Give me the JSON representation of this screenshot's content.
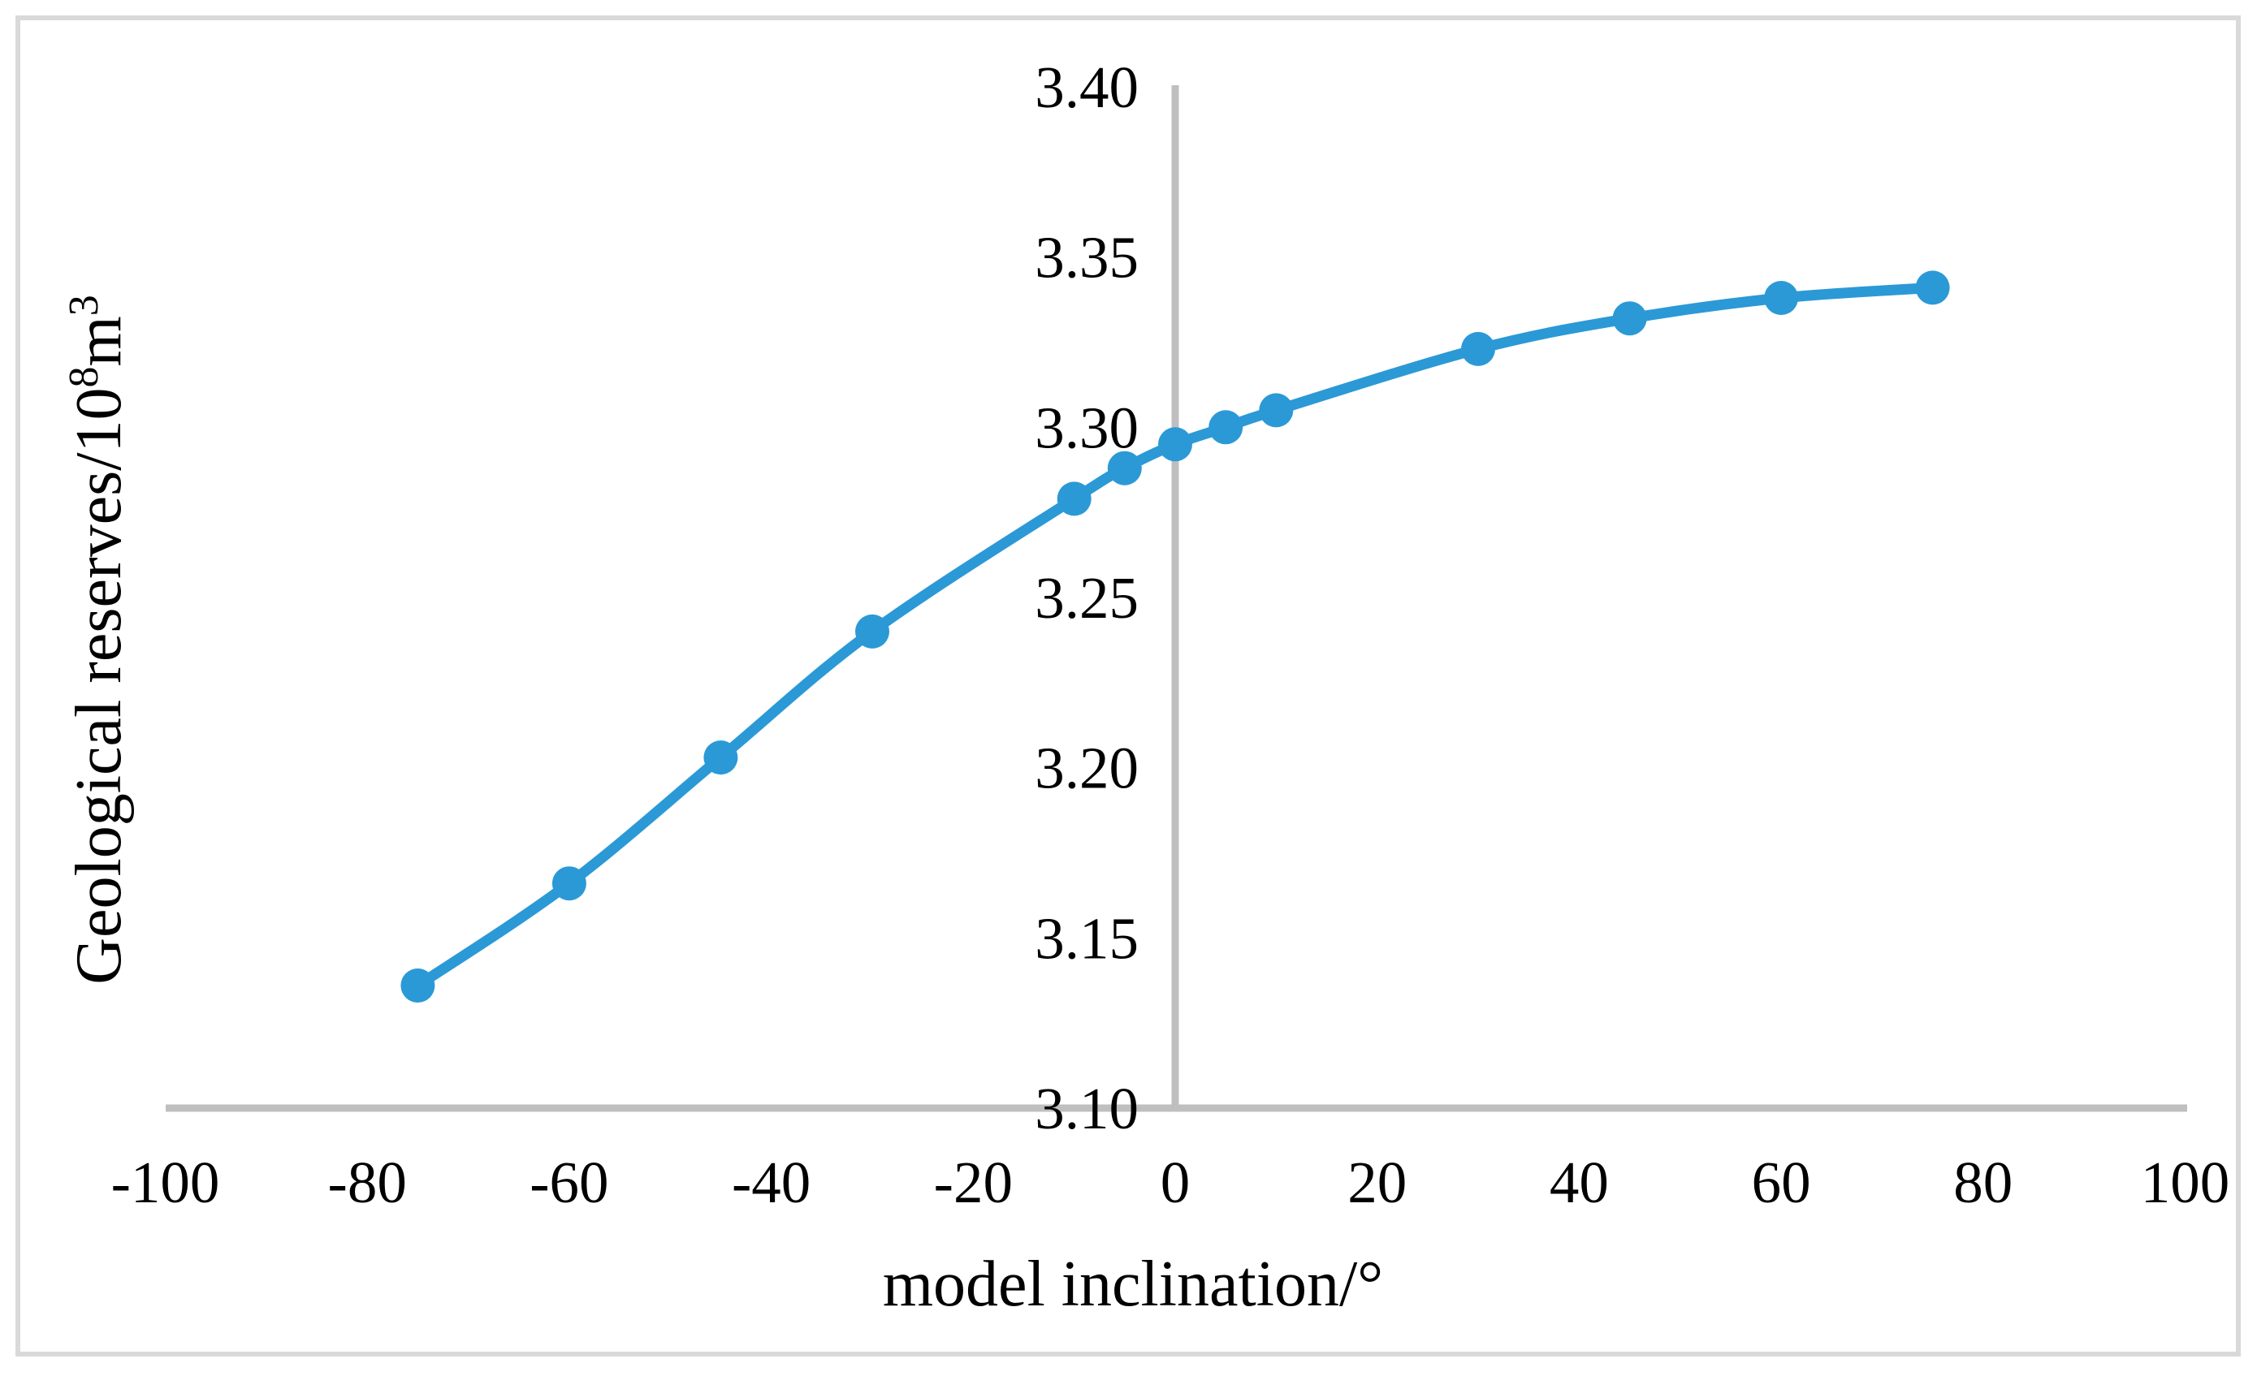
{
  "chart_data": {
    "type": "line",
    "title": "",
    "xlabel": "model inclination/°",
    "ylabel": "Geological reserves/10⁸m³",
    "ylabel_parts": [
      {
        "text": "Geological reserves/10",
        "sup": false
      },
      {
        "text": "8",
        "sup": true
      },
      {
        "text": "m",
        "sup": false
      },
      {
        "text": "3",
        "sup": true
      }
    ],
    "x_ticks": [
      "-100",
      "-80",
      "-60",
      "-40",
      "-20",
      "0",
      "20",
      "40",
      "60",
      "80",
      "100"
    ],
    "y_ticks": [
      "3.10",
      "3.15",
      "3.20",
      "3.25",
      "3.30",
      "3.35",
      "3.40"
    ],
    "xlim": [
      -100,
      100
    ],
    "ylim": [
      3.1,
      3.4
    ],
    "grid": false,
    "legend": "none",
    "smooth": true,
    "marker": "circle",
    "axis_color": "#BFBFBF",
    "border_color": "#D9D9D9",
    "text_color": "#000000",
    "series": [
      {
        "color": "#2B99D6",
        "x": [
          -75,
          -60,
          -45,
          -30,
          -10,
          -5,
          0,
          5,
          10,
          30,
          45,
          60,
          75
        ],
        "y": [
          3.136,
          3.166,
          3.203,
          3.24,
          3.279,
          3.288,
          3.295,
          3.3,
          3.305,
          3.323,
          3.332,
          3.338,
          3.341
        ]
      }
    ]
  }
}
